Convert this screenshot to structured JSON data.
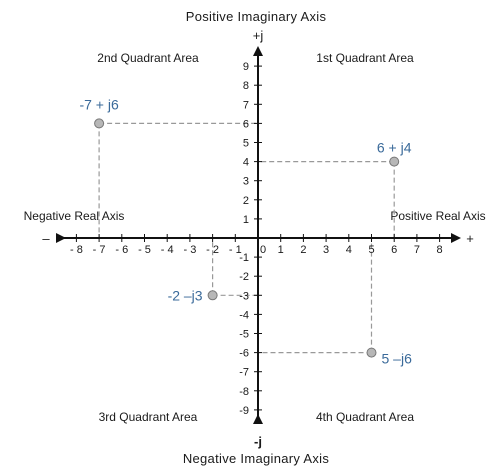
{
  "axis_titles": {
    "top": "Positive Imaginary Axis",
    "bottom": "Negative Imaginary Axis",
    "left": "Negative Real Axis",
    "right": "Positive Real Axis"
  },
  "axis_signs": {
    "plus_j": "+j",
    "minus_j": "-j",
    "plus": "+",
    "minus": "–"
  },
  "quadrants": {
    "q1": "1st Quadrant Area",
    "q2": "2nd Quadrant Area",
    "q3": "3rd Quadrant Area",
    "q4": "4th Quadrant Area"
  },
  "chart_data": {
    "type": "scatter",
    "x_ticks": [
      -8,
      -7,
      -6,
      -5,
      -4,
      -3,
      -2,
      -1,
      1,
      2,
      3,
      4,
      5,
      6,
      7,
      8
    ],
    "y_ticks": [
      -9,
      -8,
      -7,
      -6,
      -5,
      -4,
      -3,
      -2,
      -1,
      1,
      2,
      3,
      4,
      5,
      6,
      7,
      8,
      9
    ],
    "origin_label": "0",
    "xlim": [
      -9,
      9
    ],
    "ylim": [
      -9,
      9
    ],
    "points": [
      {
        "x": -7,
        "y": 6,
        "label": "-7 + j6"
      },
      {
        "x": 6,
        "y": 4,
        "label": "6 + j4"
      },
      {
        "x": -2,
        "y": -3,
        "label": "-2 –j3"
      },
      {
        "x": 5,
        "y": -6,
        "label": "5 –j6"
      }
    ],
    "colors": {
      "axis": "#111111",
      "guide": "#999999",
      "point_fill": "#b7b7b7",
      "point_stroke": "#777777",
      "point_label": "#3a6a9a"
    }
  }
}
